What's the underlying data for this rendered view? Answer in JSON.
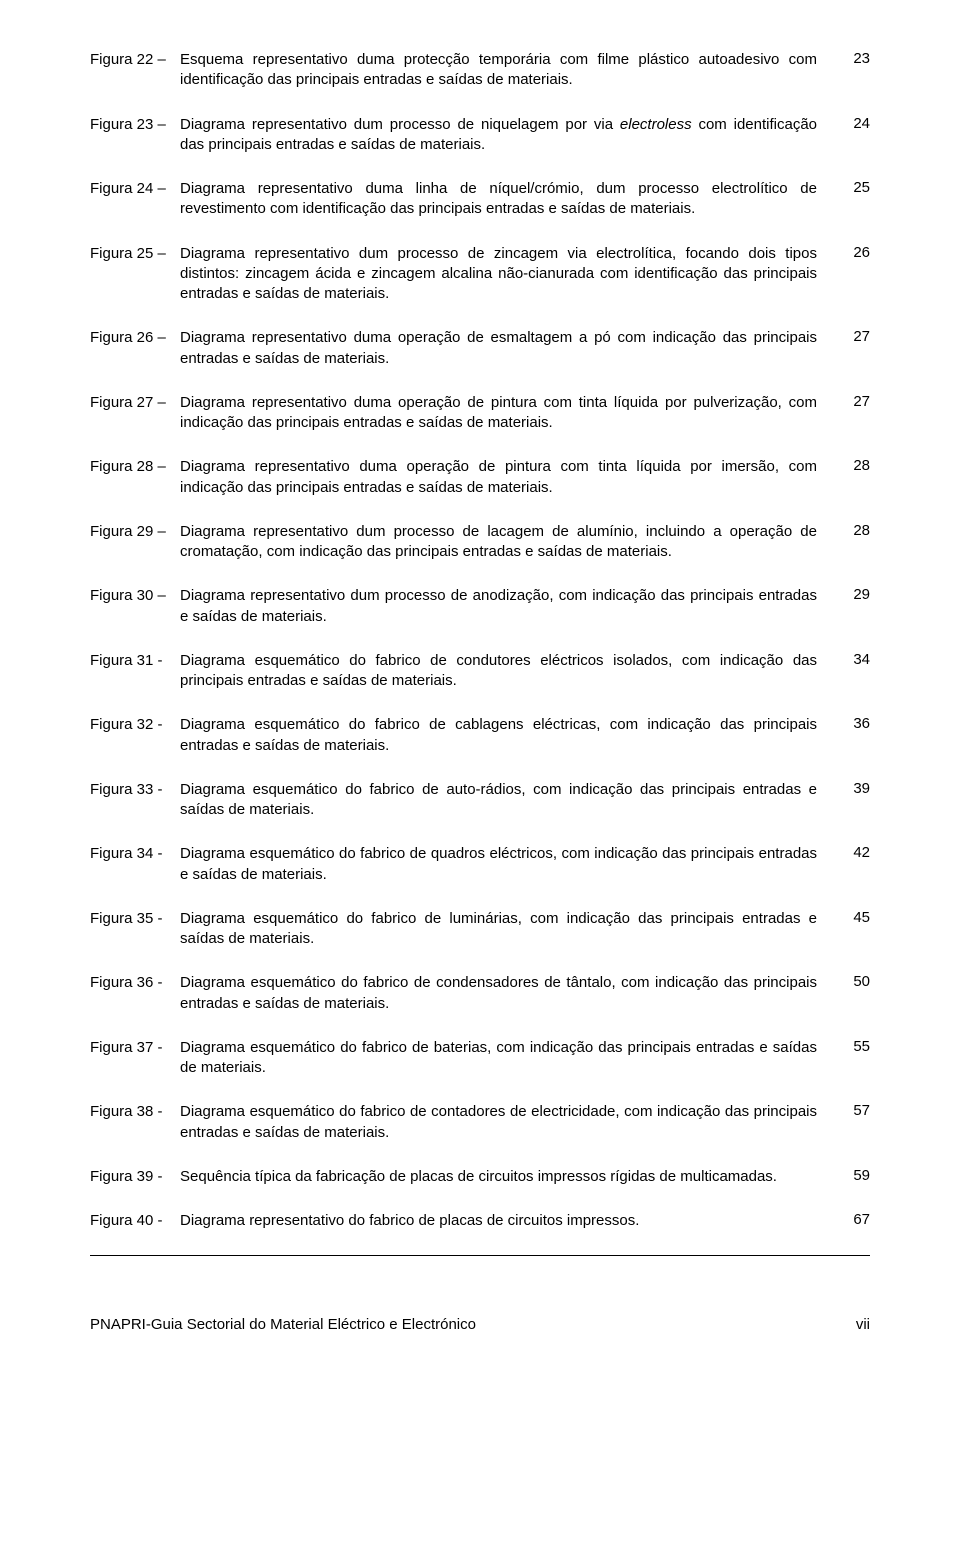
{
  "entries": [
    {
      "label": "Figura 22 –",
      "desc": "Esquema representativo duma protecção temporária com filme plástico autoadesivo com identificação das principais entradas e saídas de materiais.",
      "page": "23"
    },
    {
      "label": "Figura 23 –",
      "desc_pre": "Diagrama representativo dum processo de niquelagem por via ",
      "desc_italic": "electroless",
      "desc_post": " com identificação das principais entradas e saídas de materiais.",
      "page": "24"
    },
    {
      "label": "Figura 24 –",
      "desc": "Diagrama representativo duma linha de níquel/crómio, dum processo electrolítico de revestimento com identificação das principais entradas e saídas de materiais.",
      "page": "25"
    },
    {
      "label": "Figura 25 –",
      "desc": "Diagrama representativo dum processo de zincagem via electrolítica, focando dois tipos distintos: zincagem ácida e zincagem alcalina não-cianurada com identificação das principais entradas e saídas de materiais.",
      "page": "26"
    },
    {
      "label": "Figura 26 –",
      "desc": "Diagrama representativo duma operação de esmaltagem a pó com indicação das principais entradas e saídas de materiais.",
      "page": "27"
    },
    {
      "label": "Figura 27 –",
      "desc": "Diagrama representativo duma operação de pintura com tinta líquida por pulverização, com indicação das principais entradas e saídas de materiais.",
      "page": "27"
    },
    {
      "label": "Figura 28 –",
      "desc": "Diagrama representativo duma operação de pintura com tinta líquida por imersão, com indicação das principais entradas e saídas de materiais.",
      "page": "28"
    },
    {
      "label": "Figura 29 –",
      "desc": "Diagrama representativo dum processo de lacagem de alumínio, incluindo a operação de cromatação, com indicação das principais entradas e saídas de materiais.",
      "page": "28"
    },
    {
      "label": "Figura 30 –",
      "desc": "Diagrama representativo dum processo de anodização, com indicação das principais entradas e saídas de materiais.",
      "page": "29"
    },
    {
      "label": "Figura 31 -",
      "desc": "Diagrama esquemático do fabrico de condutores eléctricos isolados, com indicação das principais entradas e saídas de materiais.",
      "page": "34"
    },
    {
      "label": "Figura 32 -",
      "desc": "Diagrama esquemático do fabrico de cablagens eléctricas, com indicação das principais entradas e saídas de materiais.",
      "page": "36"
    },
    {
      "label": "Figura 33 -",
      "desc": "Diagrama esquemático do fabrico de auto-rádios, com indicação das principais entradas e saídas de materiais.",
      "page": "39"
    },
    {
      "label": "Figura 34 -",
      "desc": "Diagrama esquemático do fabrico de quadros eléctricos, com indicação das principais entradas e saídas de materiais.",
      "page": "42"
    },
    {
      "label": "Figura 35 -",
      "desc": "Diagrama esquemático do fabrico de luminárias, com indicação das principais entradas e saídas de materiais.",
      "page": "45"
    },
    {
      "label": "Figura 36 -",
      "desc": "Diagrama esquemático do fabrico de condensadores de tântalo, com indicação das principais entradas e saídas de materiais.",
      "page": "50"
    },
    {
      "label": "Figura 37 -",
      "desc": "Diagrama esquemático do fabrico de baterias, com indicação das principais entradas e saídas de materiais.",
      "page": "55"
    },
    {
      "label": "Figura 38 -",
      "desc": "Diagrama esquemático do fabrico de contadores de electricidade, com indicação das principais entradas e saídas de materiais.",
      "page": "57"
    },
    {
      "label": "Figura 39 -",
      "desc": "Sequência típica da fabricação de placas de circuitos impressos rígidas de multicamadas.",
      "page": "59"
    },
    {
      "label": "Figura 40 -",
      "desc": "Diagrama representativo do fabrico de placas de circuitos impressos.",
      "page": "67"
    }
  ],
  "footer": {
    "title": "PNAPRI-Guia Sectorial do Material Eléctrico e Electrónico",
    "pagenum": "vii"
  }
}
